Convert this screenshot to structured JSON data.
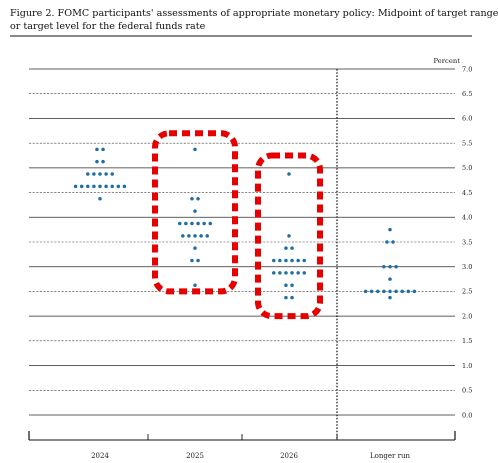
{
  "figure": {
    "title_line1": "Figure 2.  FOMC participants' assessments of appropriate monetary policy:  Midpoint of target range",
    "title_line2": "or target level for the federal funds rate"
  },
  "chart_data": {
    "type": "scatter",
    "ylabel": "Percent",
    "ylim": [
      0,
      7
    ],
    "ytick_step": 0.5,
    "yticks": [
      "0.0",
      "0.5",
      "1.0",
      "1.5",
      "2.0",
      "2.5",
      "3.0",
      "3.5",
      "4.0",
      "4.5",
      "5.0",
      "5.5",
      "6.0",
      "6.5",
      "7.0"
    ],
    "categories": [
      "2024",
      "2025",
      "2026",
      "Longer run"
    ],
    "dot_color": "#1f6fa3",
    "annotation_color": "#e60000",
    "series": [
      {
        "x": "2024",
        "dots": [
          {
            "y": 5.375,
            "n": 2
          },
          {
            "y": 5.125,
            "n": 2
          },
          {
            "y": 4.875,
            "n": 5
          },
          {
            "y": 4.625,
            "n": 9
          },
          {
            "y": 4.375,
            "n": 1
          }
        ]
      },
      {
        "x": "2025",
        "dots": [
          {
            "y": 5.375,
            "n": 1
          },
          {
            "y": 4.375,
            "n": 2
          },
          {
            "y": 4.125,
            "n": 1
          },
          {
            "y": 3.875,
            "n": 6
          },
          {
            "y": 3.625,
            "n": 5
          },
          {
            "y": 3.375,
            "n": 1
          },
          {
            "y": 3.125,
            "n": 2
          },
          {
            "y": 2.625,
            "n": 1
          }
        ]
      },
      {
        "x": "2026",
        "dots": [
          {
            "y": 4.875,
            "n": 1
          },
          {
            "y": 3.625,
            "n": 1
          },
          {
            "y": 3.375,
            "n": 2
          },
          {
            "y": 3.125,
            "n": 6
          },
          {
            "y": 2.875,
            "n": 6
          },
          {
            "y": 2.625,
            "n": 2
          },
          {
            "y": 2.375,
            "n": 2
          }
        ]
      },
      {
        "x": "Longer run",
        "dots": [
          {
            "y": 3.75,
            "n": 1
          },
          {
            "y": 3.5,
            "n": 2
          },
          {
            "y": 3.0,
            "n": 3
          },
          {
            "y": 2.75,
            "n": 1
          },
          {
            "y": 2.5,
            "n": 9
          },
          {
            "y": 2.375,
            "n": 1
          }
        ]
      }
    ],
    "highlights": [
      {
        "category": "2025",
        "y_range": [
          2.5,
          5.7
        ]
      },
      {
        "category": "2026",
        "y_range": [
          2.0,
          5.25
        ]
      }
    ]
  }
}
